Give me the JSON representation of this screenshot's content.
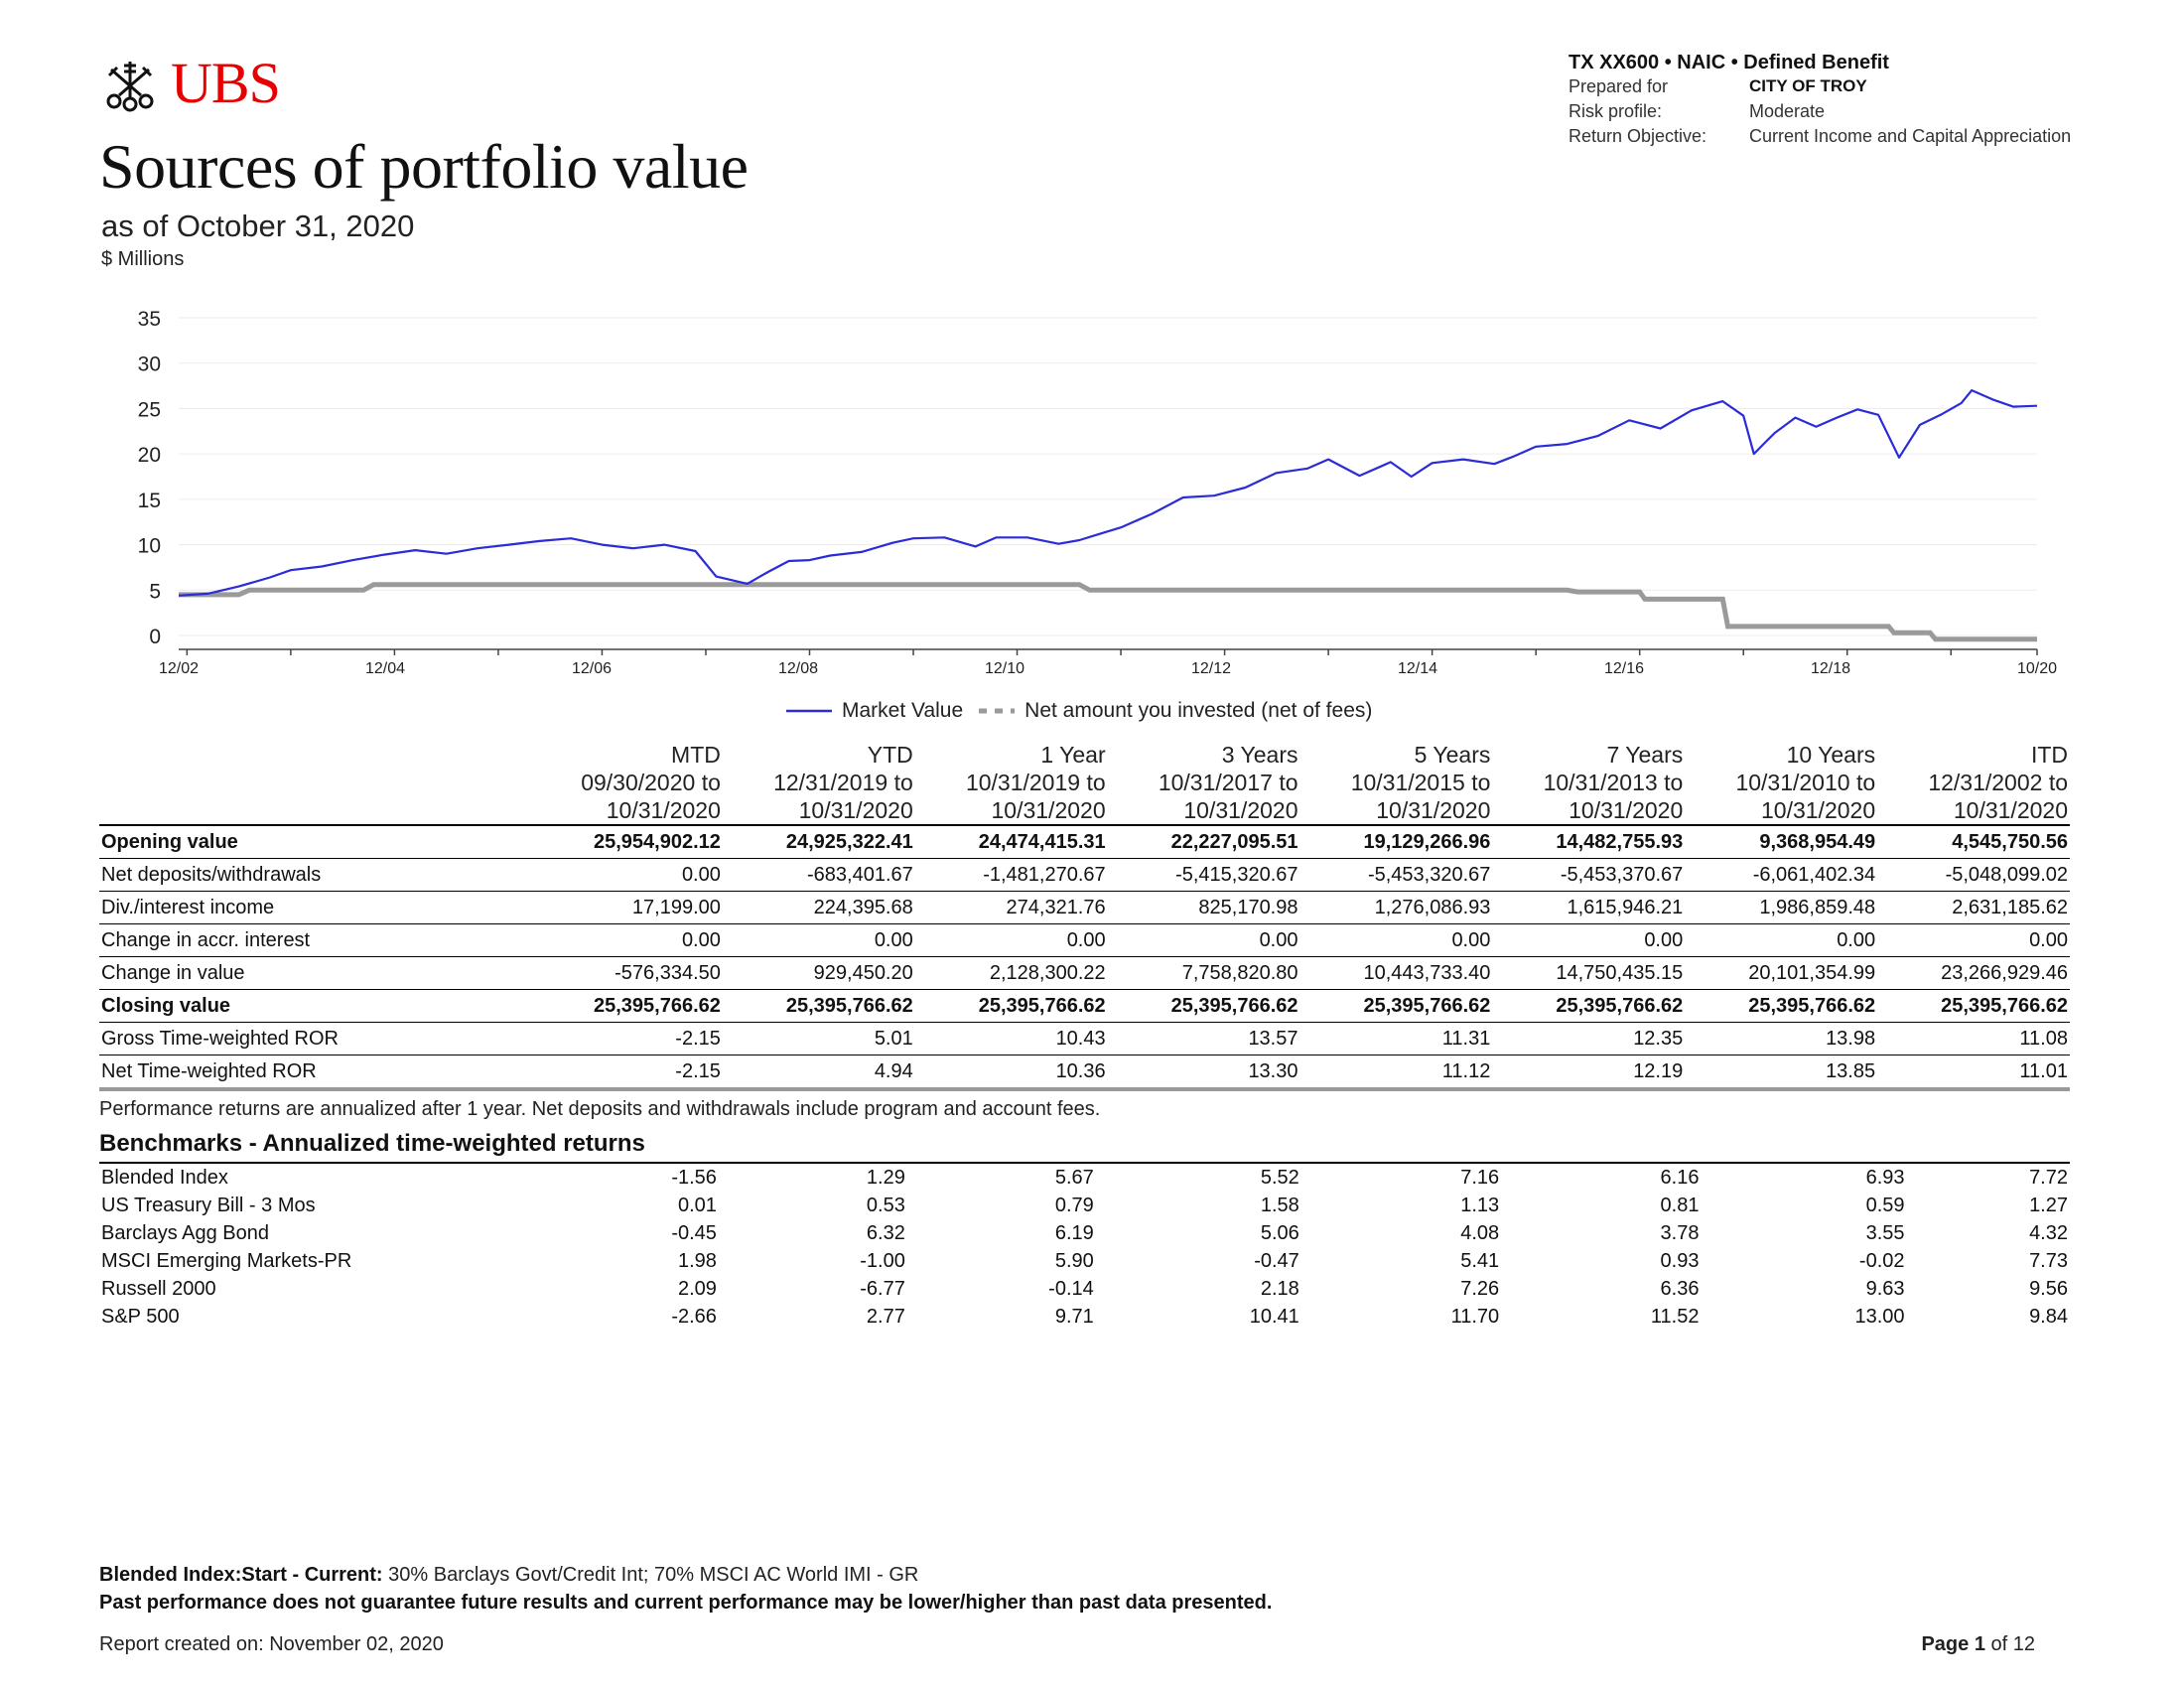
{
  "brand": {
    "logo_text": "UBS",
    "color": "#e60000"
  },
  "header": {
    "title": "Sources of portfolio value",
    "subtitle": "as of October 31, 2020",
    "units": "$ Millions"
  },
  "meta": {
    "line1": "TX XX600 • NAIC • Defined Benefit",
    "prepared_for_label": "Prepared for",
    "prepared_for_value": "CITY OF TROY",
    "risk_label": "Risk profile:",
    "risk_value": "Moderate",
    "return_label": "Return Objective:",
    "return_value": "Current Income and Capital Appreciation"
  },
  "chart_data": {
    "type": "line",
    "ylim": [
      0,
      35
    ],
    "yticks": [
      "35",
      "30",
      "25",
      "20",
      "15",
      "10",
      "5",
      "0"
    ],
    "xticks": [
      "12/02",
      "12/04",
      "12/06",
      "12/08",
      "12/10",
      "12/12",
      "12/14",
      "12/16",
      "12/18",
      "10/20"
    ],
    "xlim": [
      2002.92,
      2020.83
    ],
    "grid": true,
    "legend_position": "bottom-center",
    "series": [
      {
        "name": "Market Value",
        "color": "#2b2bd8",
        "style": "solid",
        "x": [
          2002.92,
          2003.2,
          2003.5,
          2003.8,
          2004.0,
          2004.3,
          2004.6,
          2004.9,
          2005.2,
          2005.5,
          2005.8,
          2006.1,
          2006.4,
          2006.7,
          2007.0,
          2007.3,
          2007.6,
          2007.9,
          2008.1,
          2008.4,
          2008.6,
          2008.8,
          2009.0,
          2009.2,
          2009.5,
          2009.8,
          2010.0,
          2010.3,
          2010.6,
          2010.8,
          2011.1,
          2011.4,
          2011.6,
          2011.8,
          2012.0,
          2012.3,
          2012.6,
          2012.9,
          2013.2,
          2013.5,
          2013.8,
          2014.0,
          2014.3,
          2014.6,
          2014.8,
          2015.0,
          2015.3,
          2015.6,
          2015.8,
          2016.0,
          2016.3,
          2016.6,
          2016.9,
          2017.2,
          2017.5,
          2017.8,
          2018.0,
          2018.1,
          2018.3,
          2018.5,
          2018.7,
          2018.9,
          2019.1,
          2019.3,
          2019.5,
          2019.7,
          2019.9,
          2020.1,
          2020.2,
          2020.4,
          2020.6,
          2020.83
        ],
        "y": [
          4.4,
          4.6,
          5.4,
          6.4,
          7.2,
          7.6,
          8.3,
          8.9,
          9.4,
          9.0,
          9.6,
          10.0,
          10.4,
          10.7,
          10.0,
          9.6,
          10.0,
          9.3,
          6.5,
          5.7,
          7.0,
          8.2,
          8.3,
          8.8,
          9.2,
          10.2,
          10.7,
          10.8,
          9.8,
          10.8,
          10.8,
          10.1,
          10.5,
          11.2,
          11.9,
          13.4,
          15.2,
          15.4,
          16.3,
          17.9,
          18.4,
          19.4,
          17.6,
          19.1,
          17.5,
          19.0,
          19.4,
          18.9,
          19.8,
          20.8,
          21.1,
          22.0,
          23.7,
          22.8,
          24.8,
          25.8,
          24.2,
          20.0,
          22.3,
          24.0,
          23.0,
          24.0,
          24.9,
          24.3,
          19.6,
          23.2,
          24.3,
          25.6,
          27.0,
          26.0,
          25.2,
          25.3
        ]
      },
      {
        "name": "Net amount you invested (net of fees)",
        "color": "#9a9a9a",
        "style": "dashed",
        "x": [
          2002.92,
          2003.5,
          2003.6,
          2004.7,
          2004.8,
          2011.6,
          2011.7,
          2016.3,
          2016.4,
          2017.0,
          2017.05,
          2017.8,
          2017.85,
          2019.4,
          2019.45,
          2019.8,
          2019.85,
          2020.83
        ],
        "y": [
          4.5,
          4.5,
          5.0,
          5.0,
          5.6,
          5.6,
          5.0,
          5.0,
          4.8,
          4.8,
          4.0,
          4.0,
          1.0,
          1.0,
          0.3,
          0.3,
          -0.4,
          -0.4
        ]
      }
    ]
  },
  "legend": {
    "market_value": "Market Value",
    "net_invested": "Net amount you invested (net of fees)"
  },
  "table": {
    "periods": [
      {
        "name": "MTD",
        "from": "09/30/2020 to",
        "to": "10/31/2020"
      },
      {
        "name": "YTD",
        "from": "12/31/2019 to",
        "to": "10/31/2020"
      },
      {
        "name": "1 Year",
        "from": "10/31/2019 to",
        "to": "10/31/2020"
      },
      {
        "name": "3 Years",
        "from": "10/31/2017 to",
        "to": "10/31/2020"
      },
      {
        "name": "5 Years",
        "from": "10/31/2015 to",
        "to": "10/31/2020"
      },
      {
        "name": "7 Years",
        "from": "10/31/2013 to",
        "to": "10/31/2020"
      },
      {
        "name": "10 Years",
        "from": "10/31/2010 to",
        "to": "10/31/2020"
      },
      {
        "name": "ITD",
        "from": "12/31/2002 to",
        "to": "10/31/2020"
      }
    ],
    "rows": [
      {
        "label": "Opening value",
        "bold": true,
        "values": [
          "25,954,902.12",
          "24,925,322.41",
          "24,474,415.31",
          "22,227,095.51",
          "19,129,266.96",
          "14,482,755.93",
          "9,368,954.49",
          "4,545,750.56"
        ]
      },
      {
        "label": "Net deposits/withdrawals",
        "bold": false,
        "values": [
          "0.00",
          "-683,401.67",
          "-1,481,270.67",
          "-5,415,320.67",
          "-5,453,320.67",
          "-5,453,370.67",
          "-6,061,402.34",
          "-5,048,099.02"
        ]
      },
      {
        "label": "Div./interest income",
        "bold": false,
        "values": [
          "17,199.00",
          "224,395.68",
          "274,321.76",
          "825,170.98",
          "1,276,086.93",
          "1,615,946.21",
          "1,986,859.48",
          "2,631,185.62"
        ]
      },
      {
        "label": "Change in accr. interest",
        "bold": false,
        "values": [
          "0.00",
          "0.00",
          "0.00",
          "0.00",
          "0.00",
          "0.00",
          "0.00",
          "0.00"
        ]
      },
      {
        "label": "Change in value",
        "bold": false,
        "values": [
          "-576,334.50",
          "929,450.20",
          "2,128,300.22",
          "7,758,820.80",
          "10,443,733.40",
          "14,750,435.15",
          "20,101,354.99",
          "23,266,929.46"
        ]
      },
      {
        "label": "Closing value",
        "bold": true,
        "values": [
          "25,395,766.62",
          "25,395,766.62",
          "25,395,766.62",
          "25,395,766.62",
          "25,395,766.62",
          "25,395,766.62",
          "25,395,766.62",
          "25,395,766.62"
        ]
      },
      {
        "label": "Gross Time-weighted ROR",
        "bold": false,
        "values": [
          "-2.15",
          "5.01",
          "10.43",
          "13.57",
          "11.31",
          "12.35",
          "13.98",
          "11.08"
        ]
      },
      {
        "label": "Net Time-weighted ROR",
        "bold": false,
        "values": [
          "-2.15",
          "4.94",
          "10.36",
          "13.30",
          "11.12",
          "12.19",
          "13.85",
          "11.01"
        ]
      }
    ],
    "note": "Performance returns are annualized after 1 year. Net deposits and withdrawals include program and account fees."
  },
  "benchmarks": {
    "title": "Benchmarks - Annualized time-weighted returns",
    "rows": [
      {
        "label": "Blended Index",
        "values": [
          "-1.56",
          "1.29",
          "5.67",
          "5.52",
          "7.16",
          "6.16",
          "6.93",
          "7.72"
        ]
      },
      {
        "label": "US Treasury Bill - 3 Mos",
        "values": [
          "0.01",
          "0.53",
          "0.79",
          "1.58",
          "1.13",
          "0.81",
          "0.59",
          "1.27"
        ]
      },
      {
        "label": "Barclays Agg Bond",
        "values": [
          "-0.45",
          "6.32",
          "6.19",
          "5.06",
          "4.08",
          "3.78",
          "3.55",
          "4.32"
        ]
      },
      {
        "label": "MSCI Emerging Markets-PR",
        "values": [
          "1.98",
          "-1.00",
          "5.90",
          "-0.47",
          "5.41",
          "0.93",
          "-0.02",
          "7.73"
        ]
      },
      {
        "label": "Russell 2000",
        "values": [
          "2.09",
          "-6.77",
          "-0.14",
          "2.18",
          "7.26",
          "6.36",
          "9.63",
          "9.56"
        ]
      },
      {
        "label": "S&P 500",
        "values": [
          "-2.66",
          "2.77",
          "9.71",
          "10.41",
          "11.70",
          "11.52",
          "13.00",
          "9.84"
        ]
      }
    ]
  },
  "footer": {
    "blend_label": "Blended Index",
    "blend_period": ":Start - Current:",
    "blend_desc": " 30% Barclays Govt/Credit Int; 70% MSCI AC World IMI - GR",
    "disclaimer": "Past performance does not guarantee future results and current performance may be lower/higher than past data presented.",
    "report_created": "Report created on: November 02, 2020",
    "page_label": "Page",
    "page_num": "1",
    "page_total": "of 12"
  }
}
